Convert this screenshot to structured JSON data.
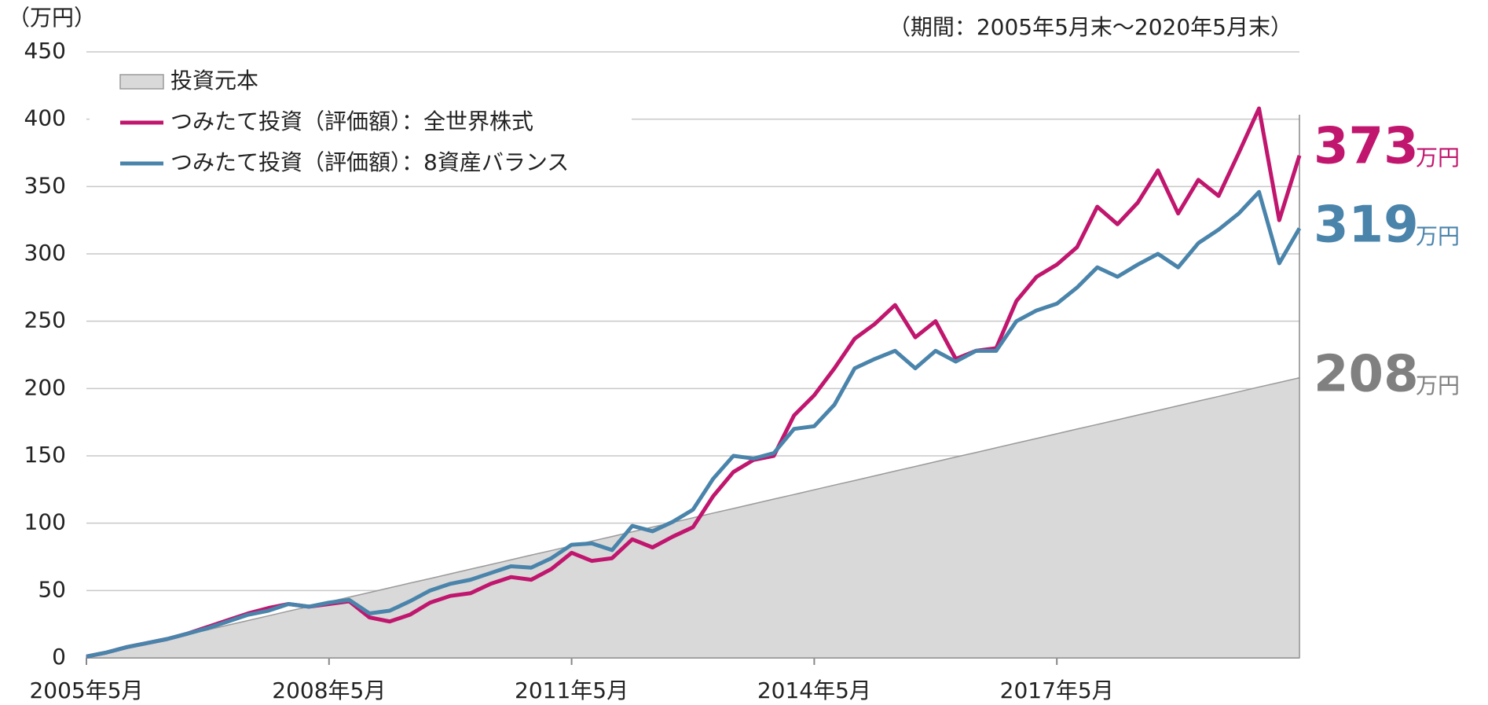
{
  "chart_data": {
    "type": "line",
    "y_label": "（万円）",
    "subtitle": "（期間：2005年5月末～2020年5月末）",
    "unit_label": "万円",
    "x": [
      "2005-05",
      "2005-08",
      "2005-11",
      "2006-02",
      "2006-05",
      "2006-08",
      "2006-11",
      "2007-02",
      "2007-05",
      "2007-08",
      "2007-11",
      "2008-02",
      "2008-05",
      "2008-08",
      "2008-11",
      "2009-02",
      "2009-05",
      "2009-08",
      "2009-11",
      "2010-02",
      "2010-05",
      "2010-08",
      "2010-11",
      "2011-02",
      "2011-05",
      "2011-08",
      "2011-11",
      "2012-02",
      "2012-05",
      "2012-08",
      "2012-11",
      "2013-02",
      "2013-05",
      "2013-08",
      "2013-11",
      "2014-02",
      "2014-05",
      "2014-08",
      "2014-11",
      "2015-02",
      "2015-05",
      "2015-08",
      "2015-11",
      "2016-02",
      "2016-05",
      "2016-08",
      "2016-11",
      "2017-02",
      "2017-05",
      "2017-08",
      "2017-11",
      "2018-02",
      "2018-05",
      "2018-08",
      "2018-11",
      "2019-02",
      "2019-05",
      "2019-08",
      "2019-11",
      "2020-02",
      "2020-05"
    ],
    "xticks": [
      {
        "value": "2005-05",
        "label": "2005年5月"
      },
      {
        "value": "2008-05",
        "label": "2008年5月"
      },
      {
        "value": "2011-05",
        "label": "2011年5月"
      },
      {
        "value": "2014-05",
        "label": "2014年5月"
      },
      {
        "value": "2017-05",
        "label": "2017年5月"
      }
    ],
    "ylim": [
      0,
      450
    ],
    "yticks": [
      0,
      50,
      100,
      150,
      200,
      250,
      300,
      350,
      400,
      450
    ],
    "grid": true,
    "legend": "top-left",
    "series": [
      {
        "name": "投資元本",
        "kind": "area",
        "color": "#d9d9d9",
        "label_color": "#808080",
        "values": [
          1,
          3.5,
          6.9,
          10.4,
          13.9,
          17.3,
          20.8,
          24.3,
          27.7,
          31.2,
          34.7,
          38.1,
          41.6,
          45.1,
          48.5,
          52,
          55.5,
          58.9,
          62.4,
          65.9,
          69.3,
          72.8,
          76.3,
          79.7,
          83.2,
          86.7,
          90.1,
          93.6,
          97.1,
          100.5,
          104,
          107.5,
          110.9,
          114.4,
          117.9,
          121.3,
          124.8,
          128.3,
          131.7,
          135.2,
          138.7,
          142.1,
          145.6,
          149.1,
          152.5,
          156,
          159.5,
          162.9,
          166.4,
          169.9,
          173.3,
          176.8,
          180.3,
          183.7,
          187.2,
          190.7,
          194.1,
          197.6,
          201.1,
          204.5,
          208
        ]
      },
      {
        "name": "つみたて投資（評価額）：全世界株式",
        "kind": "line",
        "color": "#c0166e",
        "label_color": "#c0166e",
        "values": [
          1,
          4,
          8,
          11,
          14,
          18,
          23,
          28,
          33,
          37,
          40,
          38,
          40,
          42,
          30,
          27,
          32,
          41,
          46,
          48,
          55,
          60,
          58,
          66,
          78,
          72,
          74,
          88,
          82,
          90,
          97,
          120,
          138,
          147,
          150,
          180,
          195,
          215,
          237,
          248,
          262,
          238,
          250,
          222,
          228,
          230,
          265,
          283,
          292,
          305,
          335,
          322,
          338,
          362,
          330,
          355,
          343,
          375,
          408,
          325,
          373
        ]
      },
      {
        "name": "つみたて投資（評価額）：8資産バランス",
        "kind": "line",
        "color": "#4a84ab",
        "label_color": "#4a84ab",
        "values": [
          1,
          4,
          8,
          11,
          14,
          18,
          22,
          27,
          32,
          35,
          40,
          38,
          41,
          43,
          33,
          35,
          42,
          50,
          55,
          58,
          63,
          68,
          67,
          74,
          84,
          85,
          80,
          98,
          94,
          101,
          110,
          133,
          150,
          148,
          152,
          170,
          172,
          188,
          215,
          222,
          228,
          215,
          228,
          220,
          228,
          228,
          250,
          258,
          263,
          275,
          290,
          283,
          292,
          300,
          290,
          308,
          318,
          330,
          346,
          293,
          319
        ]
      }
    ]
  }
}
